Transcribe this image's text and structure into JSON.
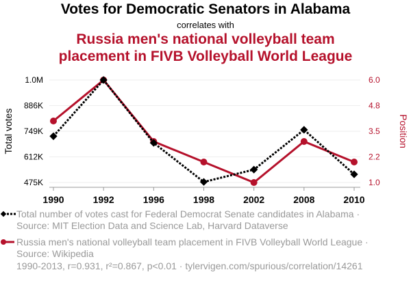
{
  "header": {
    "title": "Votes for Democratic Senators in Alabama",
    "subtitle": "correlates with",
    "title2_line1": "Russia men's national volleyball team",
    "title2_line2": "placement in FIVB Volleyball World League"
  },
  "colors": {
    "series1": "#000000",
    "series2": "#b5112b",
    "grid": "#eeeeee",
    "muted": "#999999"
  },
  "legend": {
    "series1": "Total number of votes cast for Federal Democrat Senate candidates in Alabama · Source: MIT Election Data and Science Lab, Harvard Dataverse",
    "series2": "Russia men's national volleyball team placement in FIVB Volleyball World League · Source: Wikipedia"
  },
  "footer": "1990-2013, r=0.931, r²=0.867, p<0.01 · tylervigen.com/spurious/correlation/14261",
  "chart_data": {
    "type": "line",
    "categories": [
      "1990",
      "1992",
      "1996",
      "1998",
      "2002",
      "2008",
      "2010"
    ],
    "series": [
      {
        "name": "Total votes",
        "axis": "left",
        "values": [
          712000,
          1000000,
          678000,
          478000,
          541000,
          745000,
          517000
        ]
      },
      {
        "name": "Position",
        "axis": "right",
        "values": [
          4,
          6,
          3,
          2,
          1,
          3,
          2
        ]
      }
    ],
    "ylabel_left": "Total votes",
    "ylabel_right": "Position",
    "yticks_left": [
      "1.0M",
      "886K",
      "749K",
      "612K",
      "475K"
    ],
    "yticks_right": [
      "6.0",
      "4.8",
      "3.5",
      "2.2",
      "1.0"
    ],
    "ylim_left": [
      475000,
      1000000
    ],
    "ylim_right": [
      1,
      6
    ],
    "grid": true
  }
}
